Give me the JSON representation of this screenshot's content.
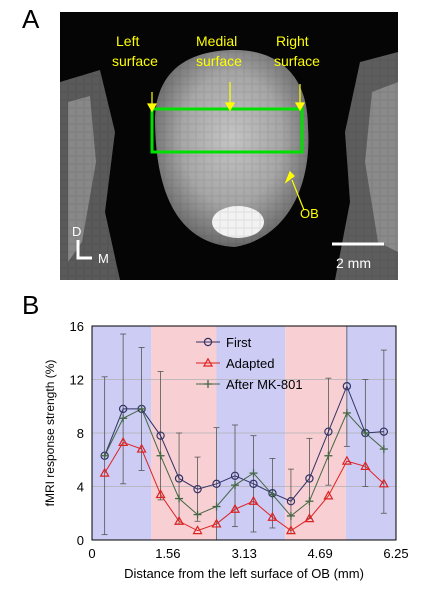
{
  "panel_a": {
    "letter": "A",
    "labels": {
      "left_surface": [
        "Left",
        "surface"
      ],
      "medial_surface": [
        "Medial",
        "surface"
      ],
      "right_surface": [
        "Right",
        "surface"
      ],
      "ob": "OB",
      "scale": "2 mm",
      "dir_d": "D",
      "dir_m": "M"
    },
    "colors": {
      "annotation": "#ffff00",
      "roi": "#00e000"
    }
  },
  "panel_b": {
    "letter": "B"
  },
  "chart_data": {
    "type": "line",
    "xlabel": "Distance from the left surface of OB (mm)",
    "ylabel": "fMRI response strength (%)",
    "xlim": [
      0,
      6.25
    ],
    "ylim": [
      0,
      16
    ],
    "xticks": [
      "0",
      "1.56",
      "3.13",
      "4.69",
      "6.25"
    ],
    "yticks": [
      "0",
      "4",
      "8",
      "12",
      "16"
    ],
    "x": [
      0.26,
      0.64,
      1.02,
      1.41,
      1.79,
      2.17,
      2.56,
      2.94,
      3.32,
      3.71,
      4.09,
      4.47,
      4.86,
      5.24,
      5.62,
      6.0
    ],
    "series": [
      {
        "name": "First",
        "color": "#333366",
        "marker": "circle",
        "values": [
          6.3,
          9.8,
          9.8,
          7.8,
          4.6,
          3.8,
          4.2,
          4.8,
          4.2,
          3.5,
          2.9,
          4.6,
          8.1,
          11.5,
          8.0,
          8.1
        ],
        "errors": [
          5.9,
          5.6,
          4.6,
          4.8,
          3.4,
          2.4,
          4.2,
          3.8,
          3.6,
          2.6,
          2.4,
          3.0,
          4.0,
          4.5,
          4.0,
          6.1
        ]
      },
      {
        "name": "Adapted",
        "color": "#dd2222",
        "marker": "triangle",
        "values": [
          5.0,
          7.3,
          6.8,
          3.4,
          1.4,
          0.7,
          1.2,
          2.3,
          2.9,
          1.7,
          0.7,
          1.6,
          3.3,
          5.9,
          5.5,
          4.2
        ]
      },
      {
        "name": "After MK-801",
        "color": "#446644",
        "marker": "plus",
        "values": [
          6.3,
          9.1,
          9.8,
          6.3,
          3.1,
          1.9,
          2.5,
          4.1,
          5.0,
          3.4,
          1.8,
          2.9,
          6.3,
          9.5,
          8.0,
          6.8
        ]
      }
    ],
    "shaded_bands": [
      {
        "x0": 0,
        "x1": 1.22,
        "color": "#ccccf5"
      },
      {
        "x0": 1.22,
        "x1": 2.56,
        "color": "#f8d0d4"
      },
      {
        "x0": 2.56,
        "x1": 3.97,
        "color": "#ccccf5"
      },
      {
        "x0": 3.97,
        "x1": 5.22,
        "color": "#f8d0d4"
      },
      {
        "x0": 5.22,
        "x1": 6.25,
        "color": "#ccccf5"
      }
    ],
    "grid": true,
    "legend": "top-center"
  }
}
